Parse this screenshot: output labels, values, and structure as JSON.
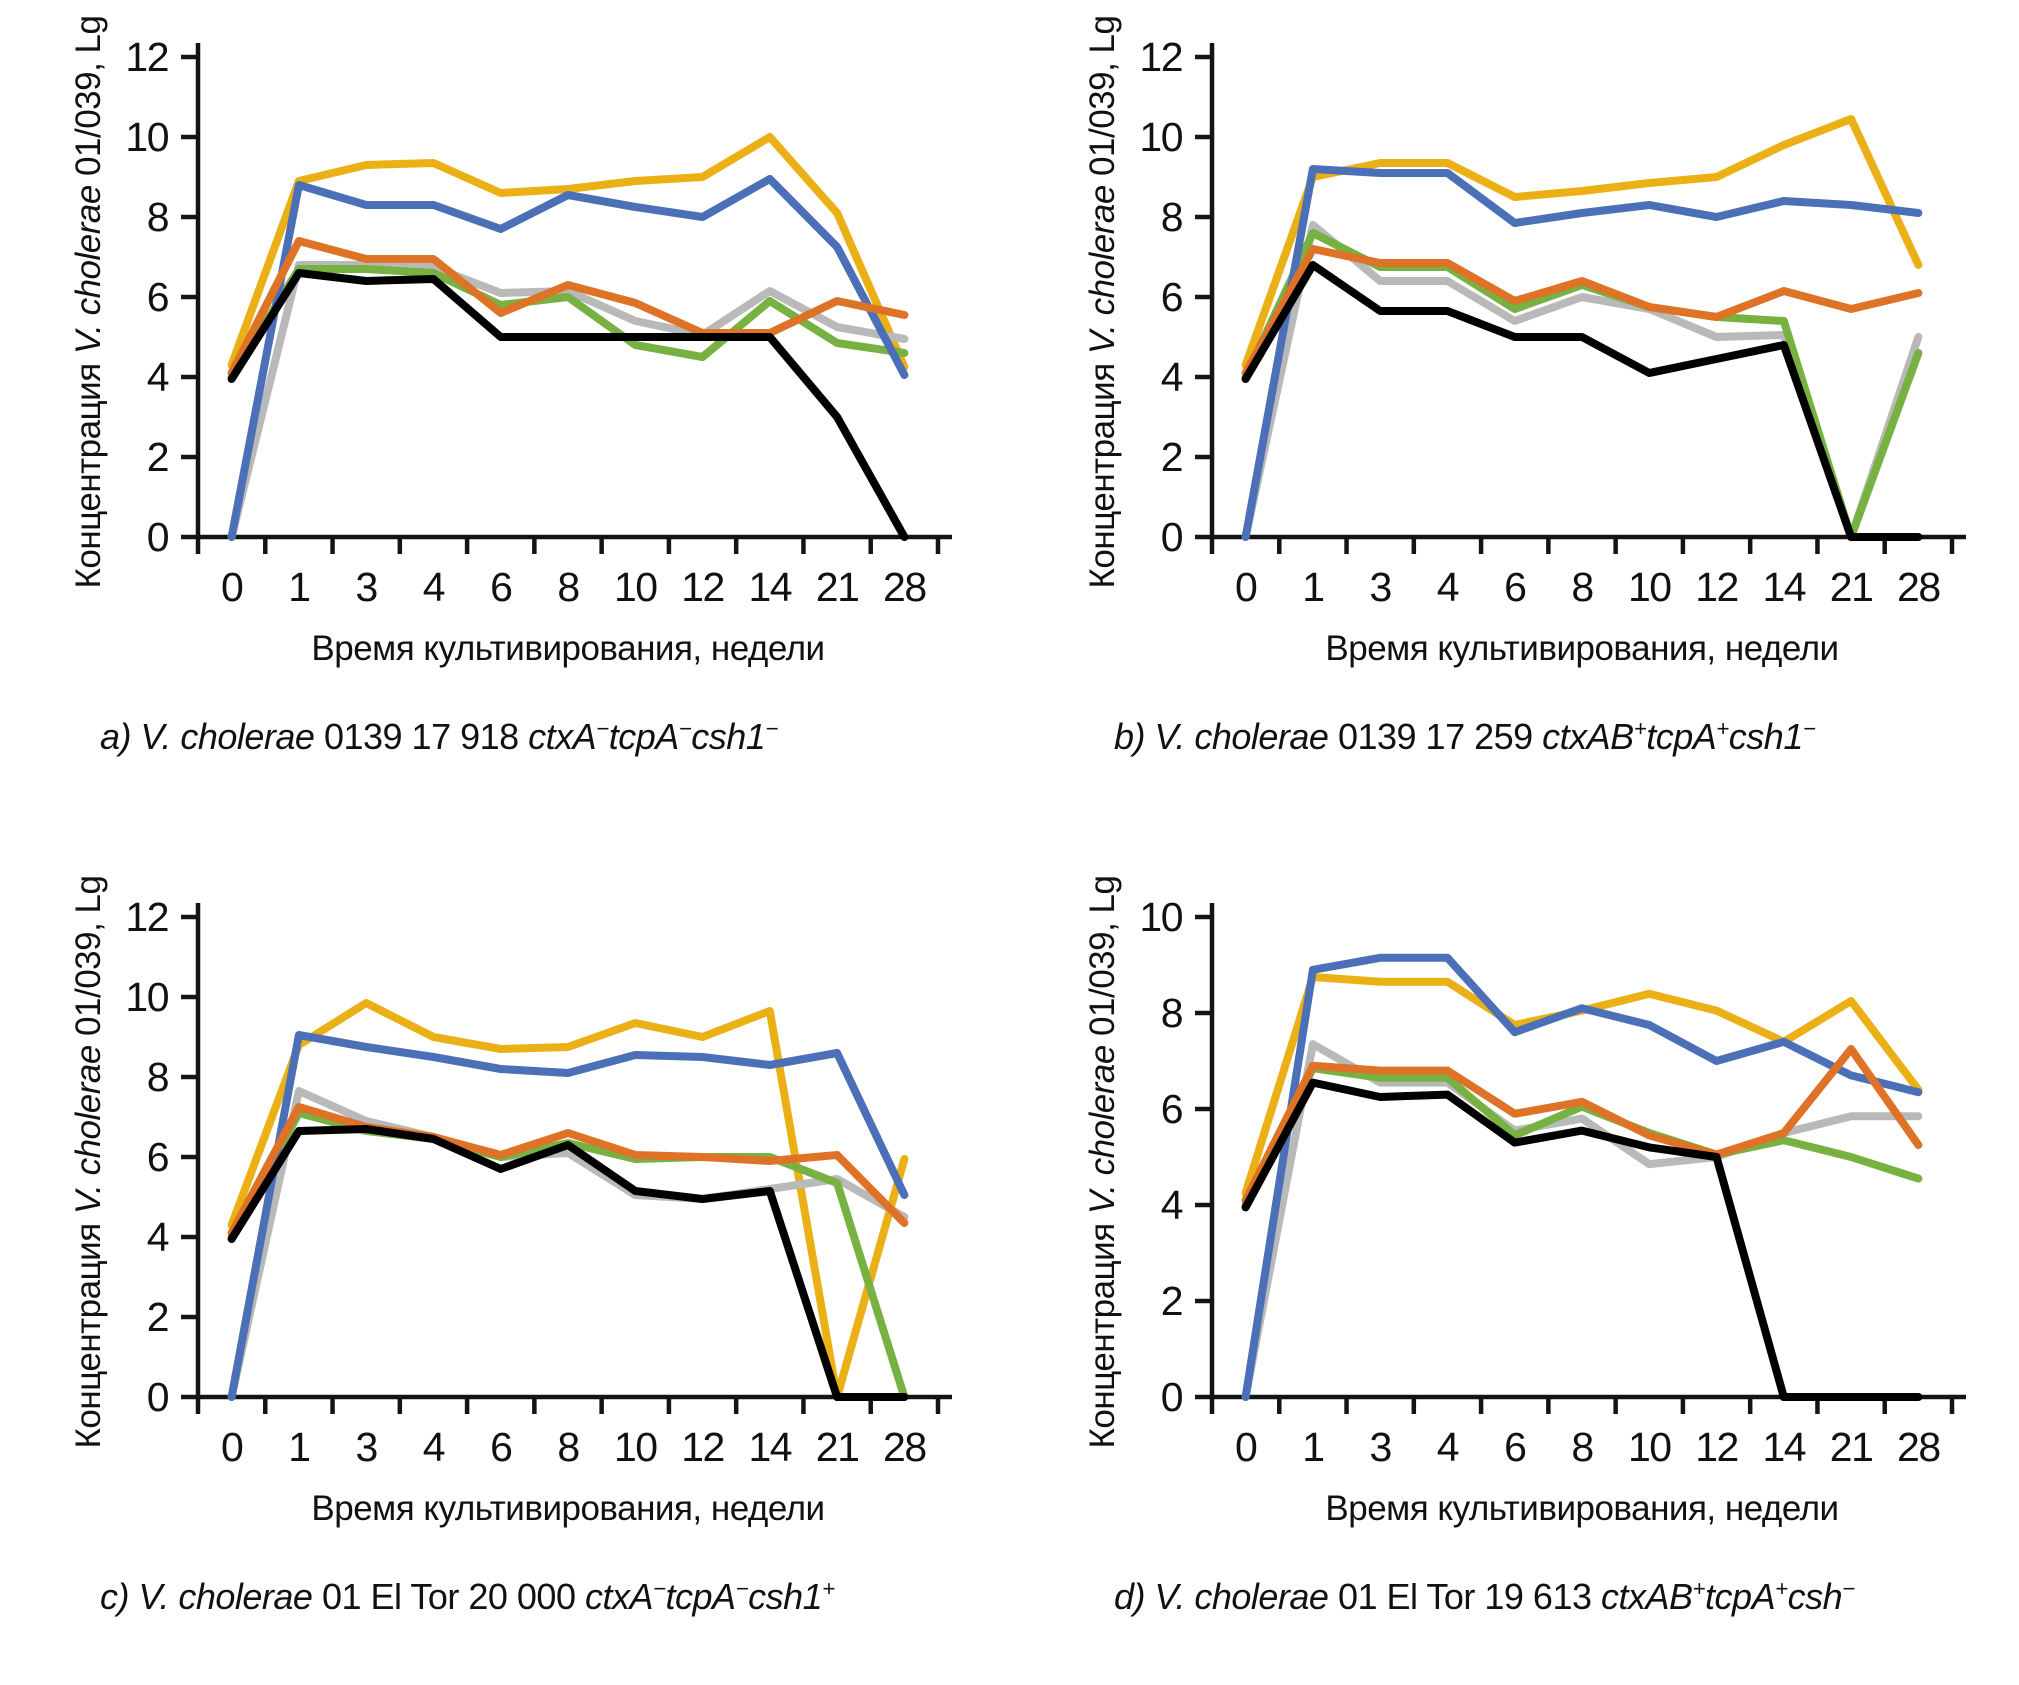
{
  "page": {
    "background": "#ffffff"
  },
  "shared": {
    "x_axis_title": "Время культивирования, недели",
    "y_axis_title_segments": [
      {
        "t": "Концентрация ",
        "i": false
      },
      {
        "t": "V. cholerae",
        "i": true
      },
      {
        "t": " 01/039, Lg",
        "i": false
      }
    ]
  },
  "chart_data": [
    {
      "id": "a",
      "type": "line",
      "caption_segments": [
        {
          "t": "a) ",
          "i": true
        },
        {
          "t": "V. cholerae",
          "i": true
        },
        {
          "t": " 0139 17 918 ",
          "i": false
        },
        {
          "t": "ctxA",
          "i": true
        },
        {
          "t": "−",
          "i": true,
          "sup": true
        },
        {
          "t": "tcpA",
          "i": true
        },
        {
          "t": "−",
          "i": true,
          "sup": true
        },
        {
          "t": "csh1",
          "i": true
        },
        {
          "t": "−",
          "i": true,
          "sup": true
        }
      ],
      "xlabel": "Время культивирования, недели",
      "ylabel_segments": [
        {
          "t": "Концентрация ",
          "i": false
        },
        {
          "t": "V. cholerae",
          "i": true
        },
        {
          "t": " 01/039, Lg",
          "i": false
        }
      ],
      "categories": [
        "0",
        "1",
        "3",
        "4",
        "6",
        "8",
        "10",
        "12",
        "14",
        "21",
        "28"
      ],
      "ylim": [
        0,
        12
      ],
      "ytick_step": 2,
      "grid": false,
      "legend": "none",
      "series": [
        {
          "name": "yellow",
          "color": "#EBB016",
          "values": [
            4.3,
            8.9,
            9.3,
            9.35,
            8.6,
            8.7,
            8.9,
            9.0,
            10.0,
            8.1,
            4.25
          ]
        },
        {
          "name": "gray",
          "color": "#B9B9B9",
          "values": [
            0,
            6.8,
            6.8,
            6.75,
            6.1,
            6.15,
            5.4,
            5.05,
            6.15,
            5.25,
            4.95
          ]
        },
        {
          "name": "green",
          "color": "#76B142",
          "values": [
            4.0,
            6.7,
            6.7,
            6.6,
            5.8,
            6.0,
            4.8,
            4.5,
            5.9,
            4.85,
            4.6
          ]
        },
        {
          "name": "blue",
          "color": "#4B70B8",
          "values": [
            0,
            8.8,
            8.3,
            8.3,
            7.7,
            8.55,
            8.25,
            8.0,
            8.95,
            7.25,
            4.05
          ]
        },
        {
          "name": "orange",
          "color": "#DE7327",
          "values": [
            4.1,
            7.4,
            6.95,
            6.95,
            5.6,
            6.3,
            5.85,
            5.1,
            5.1,
            5.9,
            5.55
          ]
        },
        {
          "name": "black",
          "color": "#000000",
          "values": [
            3.95,
            6.6,
            6.4,
            6.45,
            5.0,
            5.0,
            5.0,
            5.0,
            5.0,
            3.0,
            0
          ]
        }
      ]
    },
    {
      "id": "b",
      "type": "line",
      "caption_segments": [
        {
          "t": "b) ",
          "i": true
        },
        {
          "t": "V. cholerae",
          "i": true
        },
        {
          "t": " 0139 17 259 ",
          "i": false
        },
        {
          "t": "ctxAB",
          "i": true
        },
        {
          "t": "+",
          "i": true,
          "sup": true
        },
        {
          "t": "tcpA",
          "i": true
        },
        {
          "t": "+",
          "i": true,
          "sup": true
        },
        {
          "t": "csh1",
          "i": true
        },
        {
          "t": "−",
          "i": true,
          "sup": true
        }
      ],
      "xlabel": "Время культивирования, недели",
      "ylabel_segments": [
        {
          "t": "Концентрация ",
          "i": false
        },
        {
          "t": "V. cholerae",
          "i": true
        },
        {
          "t": " 01/039, Lg",
          "i": false
        }
      ],
      "categories": [
        "0",
        "1",
        "3",
        "4",
        "6",
        "8",
        "10",
        "12",
        "14",
        "21",
        "28"
      ],
      "ylim": [
        0,
        12
      ],
      "ytick_step": 2,
      "grid": false,
      "legend": "none",
      "series": [
        {
          "name": "yellow",
          "color": "#EBB016",
          "values": [
            4.3,
            9.0,
            9.35,
            9.35,
            8.5,
            8.65,
            8.85,
            9.0,
            9.8,
            10.45,
            6.8
          ]
        },
        {
          "name": "gray",
          "color": "#B9B9B9",
          "values": [
            0,
            7.8,
            6.4,
            6.4,
            5.4,
            6.0,
            5.7,
            5.0,
            5.05,
            0,
            5.0
          ]
        },
        {
          "name": "green",
          "color": "#76B142",
          "values": [
            4.0,
            7.6,
            6.75,
            6.75,
            5.7,
            6.3,
            5.75,
            5.5,
            5.4,
            0,
            4.6
          ]
        },
        {
          "name": "blue",
          "color": "#4B70B8",
          "values": [
            0,
            9.2,
            9.1,
            9.1,
            7.85,
            8.1,
            8.3,
            8.0,
            8.4,
            8.3,
            8.1
          ]
        },
        {
          "name": "orange",
          "color": "#DE7327",
          "values": [
            4.1,
            7.2,
            6.85,
            6.85,
            5.9,
            6.4,
            5.75,
            5.5,
            6.15,
            5.7,
            6.1
          ]
        },
        {
          "name": "black",
          "color": "#000000",
          "values": [
            3.95,
            6.8,
            5.65,
            5.65,
            5.0,
            5.0,
            4.1,
            4.45,
            4.8,
            0,
            0
          ]
        }
      ]
    },
    {
      "id": "c",
      "type": "line",
      "caption_segments": [
        {
          "t": "c) ",
          "i": true
        },
        {
          "t": "V. cholerae",
          "i": true
        },
        {
          "t": " 01 El Tor 20 000 ",
          "i": false
        },
        {
          "t": "ctxA",
          "i": true
        },
        {
          "t": "−",
          "i": true,
          "sup": true
        },
        {
          "t": "tcpA",
          "i": true
        },
        {
          "t": "−",
          "i": true,
          "sup": true
        },
        {
          "t": "csh1",
          "i": true
        },
        {
          "t": "+",
          "i": true,
          "sup": true
        }
      ],
      "xlabel": "Время культивирования, недели",
      "ylabel_segments": [
        {
          "t": "Концентрация ",
          "i": false
        },
        {
          "t": "V. cholerae",
          "i": true
        },
        {
          "t": " 01/039, Lg",
          "i": false
        }
      ],
      "categories": [
        "0",
        "1",
        "3",
        "4",
        "6",
        "8",
        "10",
        "12",
        "14",
        "21",
        "28"
      ],
      "ylim": [
        0,
        12
      ],
      "ytick_step": 2,
      "grid": false,
      "legend": "none",
      "series": [
        {
          "name": "yellow",
          "color": "#EBB016",
          "values": [
            4.3,
            8.8,
            9.85,
            9.0,
            8.7,
            8.75,
            9.35,
            9.0,
            9.65,
            0,
            5.95
          ]
        },
        {
          "name": "gray",
          "color": "#B9B9B9",
          "values": [
            0,
            7.65,
            6.9,
            6.5,
            6.0,
            6.1,
            5.05,
            4.95,
            5.2,
            5.45,
            4.5
          ]
        },
        {
          "name": "green",
          "color": "#76B142",
          "values": [
            4.0,
            7.1,
            6.65,
            6.45,
            6.0,
            6.35,
            5.95,
            6.0,
            6.0,
            5.35,
            0
          ]
        },
        {
          "name": "blue",
          "color": "#4B70B8",
          "values": [
            0,
            9.05,
            8.75,
            8.5,
            8.2,
            8.1,
            8.55,
            8.5,
            8.3,
            8.6,
            5.05
          ]
        },
        {
          "name": "orange",
          "color": "#DE7327",
          "values": [
            4.1,
            7.25,
            6.75,
            6.5,
            6.05,
            6.6,
            6.05,
            6.0,
            5.9,
            6.05,
            4.35
          ]
        },
        {
          "name": "black",
          "color": "#000000",
          "values": [
            3.95,
            6.65,
            6.7,
            6.45,
            5.7,
            6.3,
            5.15,
            4.95,
            5.15,
            0,
            0
          ]
        }
      ]
    },
    {
      "id": "d",
      "type": "line",
      "caption_segments": [
        {
          "t": "d) ",
          "i": true
        },
        {
          "t": "V. cholerae",
          "i": true
        },
        {
          "t": " 01 El Tor 19 613 ",
          "i": false
        },
        {
          "t": "ctxAB",
          "i": true
        },
        {
          "t": "+",
          "i": true,
          "sup": true
        },
        {
          "t": "tcpA",
          "i": true
        },
        {
          "t": "+",
          "i": true,
          "sup": true
        },
        {
          "t": "csh",
          "i": true
        },
        {
          "t": "−",
          "i": true,
          "sup": true
        }
      ],
      "xlabel": "Время культивирования, недели",
      "ylabel_segments": [
        {
          "t": "Концентрация ",
          "i": false
        },
        {
          "t": "V. cholerae",
          "i": true
        },
        {
          "t": " 01/039, Lg",
          "i": false
        }
      ],
      "categories": [
        "0",
        "1",
        "3",
        "4",
        "6",
        "8",
        "10",
        "12",
        "14",
        "21",
        "28"
      ],
      "ylim": [
        0,
        10
      ],
      "ytick_step": 2,
      "grid": false,
      "legend": "none",
      "series": [
        {
          "name": "yellow",
          "color": "#EBB016",
          "values": [
            4.25,
            8.75,
            8.65,
            8.65,
            7.75,
            8.05,
            8.4,
            8.05,
            7.4,
            8.25,
            6.4
          ]
        },
        {
          "name": "gray",
          "color": "#B9B9B9",
          "values": [
            0,
            7.35,
            6.55,
            6.55,
            5.55,
            5.8,
            4.85,
            5.0,
            5.5,
            5.85,
            5.85
          ]
        },
        {
          "name": "green",
          "color": "#76B142",
          "values": [
            4.0,
            6.85,
            6.65,
            6.65,
            5.45,
            6.05,
            5.5,
            5.05,
            5.35,
            5.0,
            4.55
          ]
        },
        {
          "name": "blue",
          "color": "#4B70B8",
          "values": [
            0,
            8.9,
            9.15,
            9.15,
            7.6,
            8.1,
            7.75,
            7.0,
            7.4,
            6.7,
            6.35
          ]
        },
        {
          "name": "orange",
          "color": "#DE7327",
          "values": [
            4.1,
            6.9,
            6.8,
            6.8,
            5.9,
            6.15,
            5.45,
            5.05,
            5.5,
            7.25,
            5.25
          ]
        },
        {
          "name": "black",
          "color": "#000000",
          "values": [
            3.95,
            6.55,
            6.25,
            6.3,
            5.3,
            5.55,
            5.2,
            5.0,
            0,
            0,
            0
          ]
        }
      ]
    }
  ]
}
